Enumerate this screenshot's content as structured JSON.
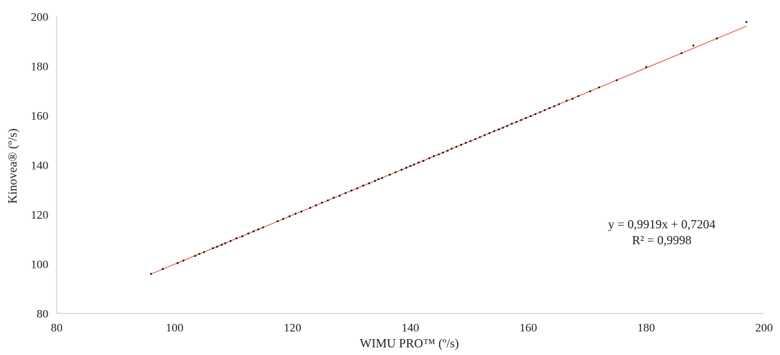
{
  "chart_data": {
    "type": "scatter",
    "title": "",
    "xlabel": "WIMU PRO™ (º/s)",
    "ylabel": "Kinovea® (º/s)",
    "xlim": [
      80,
      200
    ],
    "ylim": [
      80,
      200
    ],
    "x_ticks": [
      80,
      100,
      120,
      140,
      160,
      180,
      200
    ],
    "y_ticks": [
      80,
      100,
      120,
      140,
      160,
      180,
      200
    ],
    "x_tick_labels": [
      "80",
      "100",
      "120",
      "140",
      "160",
      "180",
      "200"
    ],
    "y_tick_labels": [
      "80",
      "100",
      "120",
      "140",
      "160",
      "180",
      "200"
    ],
    "grid": false,
    "marker_color": "#111111",
    "trendline": {
      "type": "linear",
      "slope": 0.9919,
      "intercept": 0.7204,
      "x_range": [
        96,
        197
      ],
      "color": "#e8594a",
      "equation_label": "y = 0,9919x + 0,7204",
      "r2_label": "R² = 0,9998"
    },
    "points": [
      [
        96,
        96
      ],
      [
        98,
        98
      ],
      [
        100.5,
        100.4
      ],
      [
        101.5,
        101.4
      ],
      [
        103.5,
        103.3
      ],
      [
        104.2,
        104.1
      ],
      [
        105,
        104.8
      ],
      [
        106.5,
        106.4
      ],
      [
        107.2,
        107
      ],
      [
        108,
        107.8
      ],
      [
        108.6,
        108.4
      ],
      [
        109.5,
        109.3
      ],
      [
        110.5,
        110.4
      ],
      [
        111.5,
        111.2
      ],
      [
        112.5,
        112.3
      ],
      [
        113.4,
        113.2
      ],
      [
        114.2,
        114
      ],
      [
        115,
        114.8
      ],
      [
        117.5,
        117.3
      ],
      [
        118.4,
        118.2
      ],
      [
        119.5,
        119.3
      ],
      [
        120.5,
        120.3
      ],
      [
        121.5,
        121.2
      ],
      [
        123,
        122.7
      ],
      [
        124,
        123.7
      ],
      [
        125,
        124.8
      ],
      [
        126,
        125.7
      ],
      [
        127,
        126.8
      ],
      [
        128,
        127.6
      ],
      [
        129,
        128.7
      ],
      [
        130,
        129.7
      ],
      [
        131,
        130.6
      ],
      [
        132,
        131.7
      ],
      [
        133,
        132.6
      ],
      [
        134,
        133.6
      ],
      [
        134.6,
        134.3
      ],
      [
        135.2,
        134.8
      ],
      [
        136.5,
        136.1
      ],
      [
        137.5,
        137.1
      ],
      [
        138.5,
        138.1
      ],
      [
        139.3,
        138.9
      ],
      [
        140,
        139.6
      ],
      [
        140.6,
        140.2
      ],
      [
        141.4,
        141
      ],
      [
        142.2,
        141.7
      ],
      [
        143.2,
        142.8
      ],
      [
        144,
        143.6
      ],
      [
        144.8,
        144.3
      ],
      [
        145.5,
        145
      ],
      [
        146.3,
        145.8
      ],
      [
        147,
        146.6
      ],
      [
        147.8,
        147.4
      ],
      [
        148.6,
        148.2
      ],
      [
        149.4,
        149
      ],
      [
        150.2,
        149.7
      ],
      [
        151,
        150.5
      ],
      [
        151.8,
        151.3
      ],
      [
        152.6,
        152.1
      ],
      [
        153.4,
        152.9
      ],
      [
        154.2,
        153.7
      ],
      [
        155,
        154.4
      ],
      [
        155.7,
        155.1
      ],
      [
        156.4,
        155.8
      ],
      [
        157.2,
        156.7
      ],
      [
        158,
        157.4
      ],
      [
        158.8,
        158.2
      ],
      [
        159.6,
        159
      ],
      [
        160.4,
        159.8
      ],
      [
        161.2,
        160.6
      ],
      [
        162,
        161.4
      ],
      [
        162.8,
        162.2
      ],
      [
        163.6,
        163
      ],
      [
        164.4,
        163.8
      ],
      [
        165.2,
        164.6
      ],
      [
        166.5,
        166
      ],
      [
        167.5,
        166.8
      ],
      [
        168.5,
        167.9
      ],
      [
        170.5,
        169.8
      ],
      [
        172,
        171.4
      ],
      [
        175,
        174.3
      ],
      [
        180,
        179.6
      ],
      [
        186,
        185.2
      ],
      [
        188,
        188.3
      ],
      [
        192,
        191.2
      ],
      [
        197,
        197.8
      ]
    ]
  }
}
